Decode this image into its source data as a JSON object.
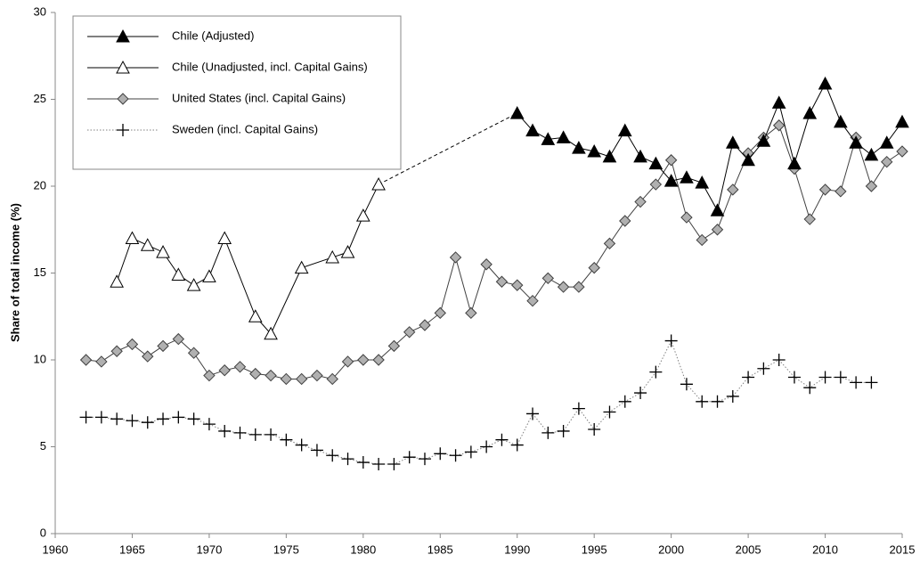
{
  "chart_data": {
    "type": "line",
    "y_label": "Share of  total income (%)",
    "xlim": [
      1960,
      2015
    ],
    "xticks": [
      1960,
      1965,
      1970,
      1975,
      1980,
      1985,
      1990,
      1995,
      2000,
      2005,
      2010,
      2015
    ],
    "ylim": [
      0,
      30
    ],
    "yticks": [
      0,
      5,
      10,
      15,
      20,
      25,
      30
    ],
    "grid": false,
    "legend": "upper left",
    "series": [
      {
        "name": "Chile (Adjusted)",
        "color": "#000000",
        "marker": "triangle",
        "marker_fill": "#000000",
        "line_style": "solid",
        "x": [
          1990,
          1991,
          1992,
          1993,
          1994,
          1995,
          1996,
          1997,
          1998,
          1999,
          2000,
          2001,
          2002,
          2003,
          2004,
          2005,
          2006,
          2007,
          2008,
          2009,
          2010,
          2011,
          2012,
          2013,
          2014,
          2015
        ],
        "values": [
          24.2,
          23.2,
          22.7,
          22.8,
          22.2,
          22.0,
          21.7,
          23.2,
          21.7,
          21.3,
          20.3,
          20.5,
          20.2,
          18.6,
          22.5,
          21.5,
          22.6,
          24.8,
          21.3,
          24.2,
          25.9,
          23.7,
          22.5,
          21.8,
          22.5,
          23.7
        ]
      },
      {
        "name": "Chile (Unadjusted, incl. Capital Gains)",
        "color": "#000000",
        "marker": "triangle",
        "marker_fill": "#ffffff",
        "line_style": "solid",
        "x": [
          1964,
          1965,
          1966,
          1967,
          1968,
          1969,
          1970,
          1971,
          1973,
          1974,
          1976,
          1978,
          1979,
          1980,
          1981
        ],
        "values": [
          14.5,
          17.0,
          16.6,
          16.2,
          14.9,
          14.3,
          14.8,
          17.0,
          12.5,
          11.5,
          15.3,
          15.9,
          16.2,
          18.3,
          20.1
        ]
      },
      {
        "name": "United States (incl. Capital Gains)",
        "color": "#404040",
        "marker": "diamond",
        "marker_fill": "#b0b0b0",
        "line_style": "solid",
        "x": [
          1962,
          1963,
          1964,
          1965,
          1966,
          1967,
          1968,
          1969,
          1970,
          1971,
          1972,
          1973,
          1974,
          1975,
          1976,
          1977,
          1978,
          1979,
          1980,
          1981,
          1982,
          1983,
          1984,
          1985,
          1986,
          1987,
          1988,
          1989,
          1990,
          1991,
          1992,
          1993,
          1994,
          1995,
          1996,
          1997,
          1998,
          1999,
          2000,
          2001,
          2002,
          2003,
          2004,
          2005,
          2006,
          2007,
          2008,
          2009,
          2010,
          2011,
          2012,
          2013,
          2014,
          2015
        ],
        "values": [
          10.0,
          9.9,
          10.5,
          10.9,
          10.2,
          10.8,
          11.2,
          10.4,
          9.1,
          9.4,
          9.6,
          9.2,
          9.1,
          8.9,
          8.9,
          9.1,
          8.9,
          9.9,
          10.0,
          10.0,
          10.8,
          11.6,
          12.0,
          12.7,
          15.9,
          12.7,
          15.5,
          14.5,
          14.3,
          13.4,
          14.7,
          14.2,
          14.2,
          15.3,
          16.7,
          18.0,
          19.1,
          20.1,
          21.5,
          18.2,
          16.9,
          17.5,
          19.8,
          21.9,
          22.8,
          23.5,
          21.0,
          18.1,
          19.8,
          19.7,
          22.8,
          20.0,
          21.4,
          22.0
        ]
      },
      {
        "name": "Sweden (incl. Capital Gains)",
        "color": "#808080",
        "marker": "plus",
        "marker_fill": "#000000",
        "line_style": "dotted",
        "x": [
          1962,
          1963,
          1964,
          1965,
          1966,
          1967,
          1968,
          1969,
          1970,
          1971,
          1972,
          1973,
          1974,
          1975,
          1976,
          1977,
          1978,
          1979,
          1980,
          1981,
          1982,
          1983,
          1984,
          1985,
          1986,
          1987,
          1988,
          1989,
          1990,
          1991,
          1992,
          1993,
          1994,
          1995,
          1996,
          1997,
          1998,
          1999,
          2000,
          2001,
          2002,
          2003,
          2004,
          2005,
          2006,
          2007,
          2008,
          2009,
          2010,
          2011,
          2012,
          2013
        ],
        "values": [
          6.7,
          6.7,
          6.6,
          6.5,
          6.4,
          6.6,
          6.7,
          6.6,
          6.3,
          5.9,
          5.8,
          5.7,
          5.7,
          5.4,
          5.1,
          4.8,
          4.5,
          4.3,
          4.1,
          4.0,
          4.0,
          4.4,
          4.3,
          4.6,
          4.5,
          4.7,
          5.0,
          5.4,
          5.1,
          6.9,
          5.8,
          5.9,
          7.2,
          6.0,
          7.0,
          7.6,
          8.1,
          9.3,
          11.1,
          8.6,
          7.6,
          7.6,
          7.9,
          9.0,
          9.5,
          10.0,
          9.0,
          8.4,
          9.0,
          9.0,
          8.7,
          8.7
        ]
      }
    ]
  }
}
